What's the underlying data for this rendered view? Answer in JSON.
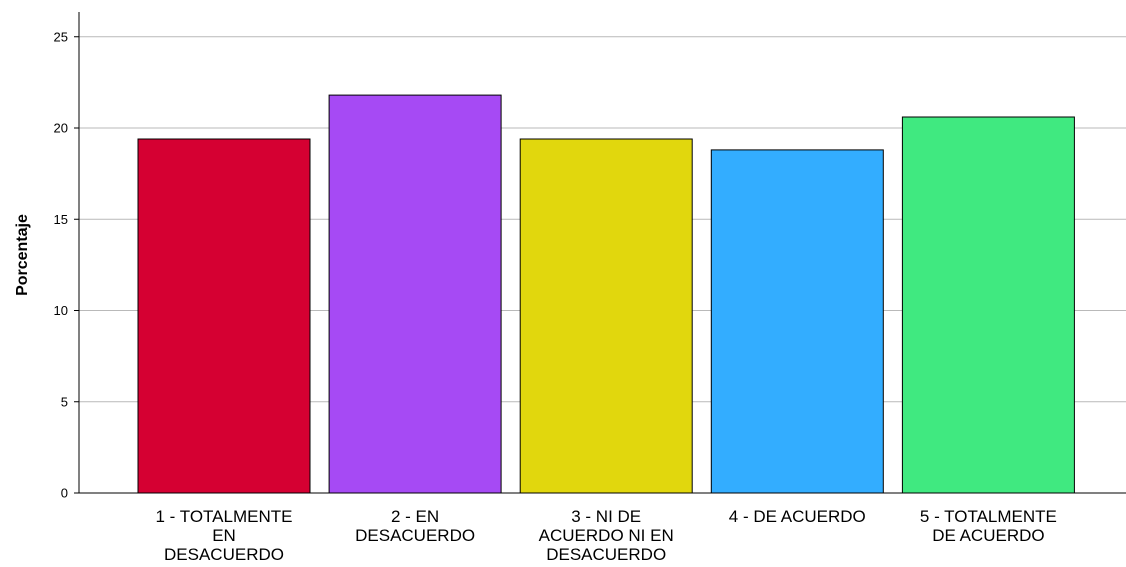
{
  "chart_data": {
    "type": "bar",
    "title": "",
    "xlabel": "",
    "ylabel": "Porcentaje",
    "ylim": [
      0,
      26
    ],
    "yticks": [
      0,
      5,
      10,
      15,
      20,
      25
    ],
    "grid": true,
    "categories": [
      [
        "1 - TOTALMENTE",
        "EN",
        "DESACUERDO"
      ],
      [
        "2 - EN",
        "DESACUERDO"
      ],
      [
        "3 - NI DE",
        "ACUERDO NI EN",
        "DESACUERDO"
      ],
      [
        "4 - DE ACUERDO"
      ],
      [
        "5 - TOTALMENTE",
        "DE ACUERDO"
      ]
    ],
    "values": [
      19.4,
      21.8,
      19.4,
      18.8,
      20.6
    ],
    "colors": [
      "#d50032",
      "#a64af4",
      "#e1d70d",
      "#33adff",
      "#40e980"
    ]
  }
}
